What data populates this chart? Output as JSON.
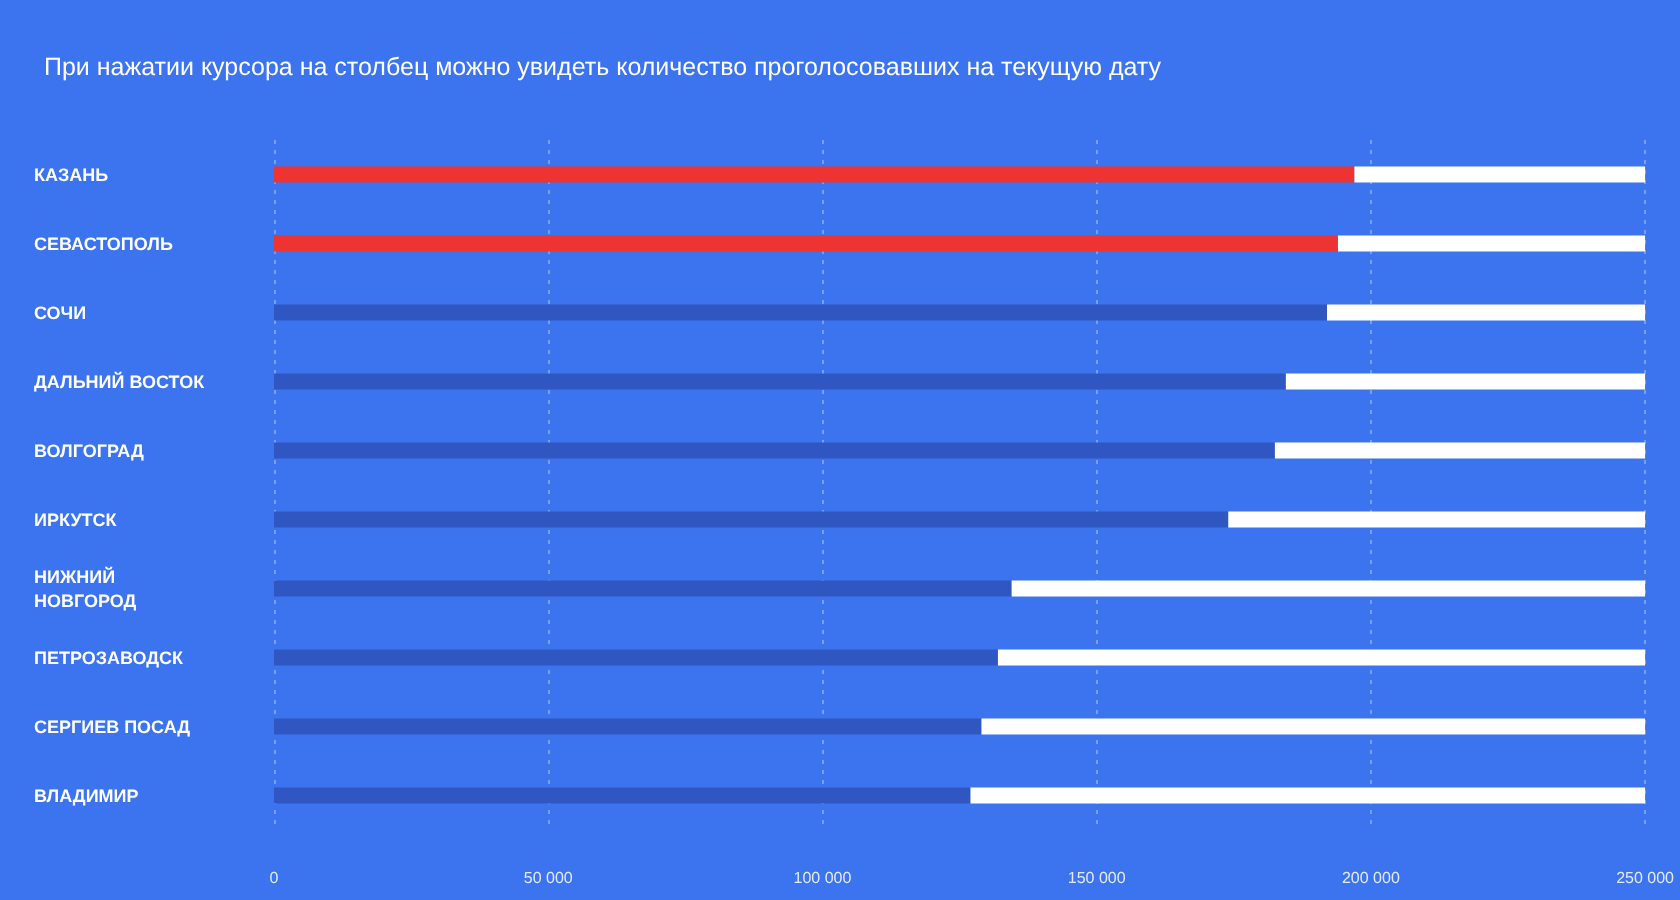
{
  "chart_data": {
    "type": "bar",
    "orientation": "horizontal",
    "stacked": true,
    "title": "При нажатии курсора на столбец можно увидеть количество проголосовавших на текущую дату",
    "categories": [
      "КАЗАНЬ",
      "СЕВАСТОПОЛЬ",
      "СОЧИ",
      "ДАЛЬНИЙ ВОСТОК",
      "ВОЛГОГРАД",
      "ИРКУТСК",
      "НИЖНИЙ НОВГОРОД",
      "ПЕТРОЗАВОДСК",
      "СЕРГИЕВ ПОСАД",
      "ВЛАДИМИР"
    ],
    "series": [
      {
        "colors": [
          "#ee3333",
          "#ee3333",
          "#3056c2",
          "#3056c2",
          "#3056c2",
          "#3056c2",
          "#3056c2",
          "#3056c2",
          "#3056c2",
          "#3056c2"
        ],
        "values": [
          197000,
          194000,
          192000,
          184500,
          182500,
          174000,
          134500,
          132000,
          129000,
          127000
        ]
      },
      {
        "color": "#ffffff",
        "values": [
          53000,
          56000,
          58000,
          65500,
          67500,
          76000,
          115500,
          118000,
          121000,
          123000
        ]
      }
    ],
    "xlim": [
      0,
      250000
    ],
    "xticks": [
      0,
      {
        "value": 50000,
        "label": "50 000"
      },
      {
        "value": 100000,
        "label": "100 000"
      },
      {
        "value": 150000,
        "label": "150 000"
      },
      {
        "value": 200000,
        "label": "200 000"
      },
      {
        "value": 250000,
        "label": "250 000"
      }
    ],
    "grid": "x"
  }
}
